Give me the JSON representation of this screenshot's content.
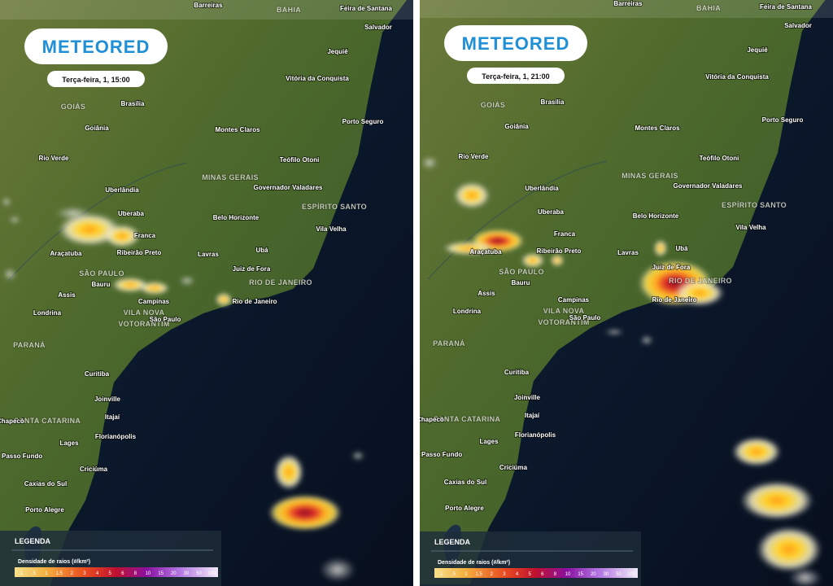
{
  "logo": "METEORED",
  "panels": [
    {
      "time": "Terça-feira, 1, 15:00"
    },
    {
      "time": "Terça-feira, 1, 21:00"
    }
  ],
  "places": [
    "Barreiras",
    "BAHIA",
    "Feira de Santana",
    "Salvador",
    "Jequié",
    "Vitória da Conquista",
    "GOIÁS",
    "Brasília",
    "Goiânia",
    "Montes Claros",
    "Porto Seguro",
    "Rio Verde",
    "Teófilo Otoni",
    "MINAS GERAIS",
    "Governador Valadares",
    "Uberlândia",
    "ESPÍRITO SANTO",
    "Uberaba",
    "Belo Horizonte",
    "Vila Velha",
    "Franca",
    "Araçatuba",
    "Ribeirão Preto",
    "Ubá",
    "Lavras",
    "SÃO PAULO",
    "Juiz de Fora",
    "Bauru",
    "RIO DE JANEIRO",
    "Assis",
    "Campinas",
    "Rio de Janeiro",
    "Londrina",
    "VILA NOVA",
    "VOTORANTIM",
    "São Paulo",
    "PARANÁ",
    "Curitiba",
    "Joinville",
    "Itajaí",
    "SANTA CATARINA",
    "Chapecó",
    "Florianópolis",
    "Lages",
    "Passo Fundo",
    "Criciúma",
    "Caxias do Sul",
    "Porto Alegre"
  ],
  "legend": {
    "title": "LEGENDA",
    "label": "Densidade de raios (#/km²)",
    "ticks": [
      ".1",
      ".5",
      "1",
      "1.5",
      "2",
      "3",
      "4",
      "5",
      "6",
      "8",
      "10",
      "15",
      "20",
      "30",
      "50",
      "100"
    ]
  }
}
